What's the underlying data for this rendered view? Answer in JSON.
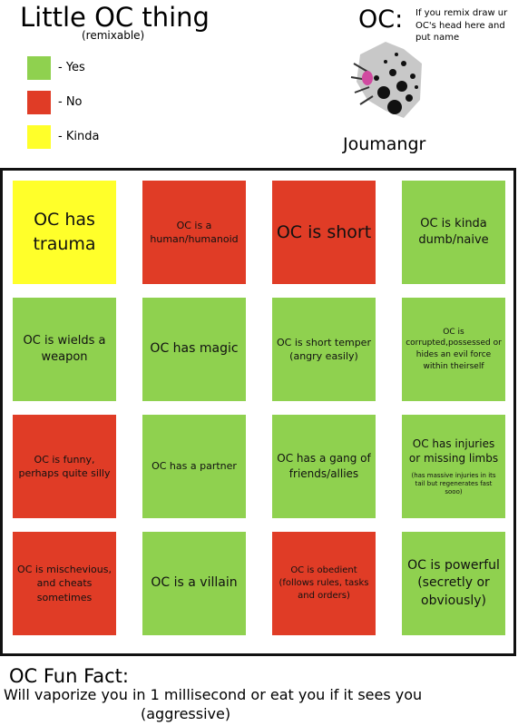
{
  "header": {
    "title": "Little OC thing",
    "subtitle": "(remixable)"
  },
  "legend": [
    {
      "color": "#8fd14f",
      "label": "- Yes"
    },
    {
      "color": "#e03c26",
      "label": "- No"
    },
    {
      "color": "#ffff2a",
      "label": "- Kinda"
    }
  ],
  "oc": {
    "label": "OC:",
    "note": "If you remix draw ur OC's head here and put name",
    "name": "Joumangr"
  },
  "grid": {
    "cells": [
      {
        "text": "OC has trauma",
        "color": "#ffff2a"
      },
      {
        "text": "OC is a human/humanoid",
        "color": "#e03c26"
      },
      {
        "text": "OC is short",
        "color": "#e03c26"
      },
      {
        "text": "OC is kinda dumb/naive",
        "color": "#8fd14f"
      },
      {
        "text": "OC is wields a weapon",
        "color": "#8fd14f"
      },
      {
        "text": "OC has magic",
        "color": "#8fd14f"
      },
      {
        "text": "OC is short temper (angry easily)",
        "color": "#8fd14f"
      },
      {
        "text": "OC is corrupted,possessed or hides an evil force within theirself",
        "color": "#8fd14f"
      },
      {
        "text": "OC is funny, perhaps quite silly",
        "color": "#e03c26"
      },
      {
        "text": "OC has a partner",
        "color": "#8fd14f"
      },
      {
        "text": "OC has a gang of friends/allies",
        "color": "#8fd14f"
      },
      {
        "text": "OC has injuries or missing limbs",
        "note": "(has massive injuries in its tail but regenerates fast sooo)",
        "color": "#8fd14f"
      },
      {
        "text": "OC is mischevious, and cheats sometimes",
        "color": "#e03c26"
      },
      {
        "text": "OC is a villain",
        "color": "#8fd14f"
      },
      {
        "text": "OC is obedient (follows rules, tasks and orders)",
        "color": "#e03c26"
      },
      {
        "text": "OC is powerful (secretly or obviously)",
        "color": "#8fd14f"
      }
    ]
  },
  "fun_fact": {
    "title": "OC Fun Fact:",
    "text": "Will vaporize you in 1 millisecond or eat you if it sees you",
    "aside": "(aggressive)"
  }
}
